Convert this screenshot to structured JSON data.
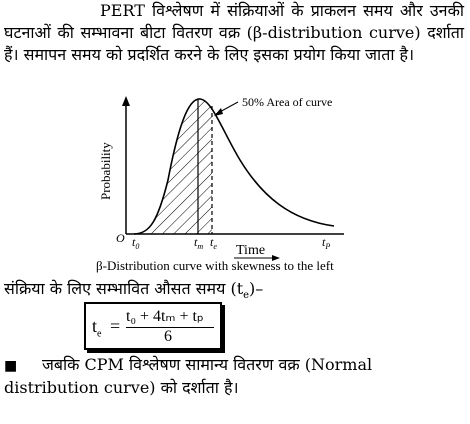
{
  "paragraph1": {
    "text": "PERT विश्लेषण में संक्रियाओं के प्राकलन समय और उनकी घटनाओं की सम्भावना बीटा वितरण वक्र (β-distribution curve) दर्शाता हैं। समापन समय को प्रदर्शित करने के लिए इसका प्रयोग किया जाता है।"
  },
  "figure": {
    "ylabel": "Probability",
    "xlabel": "Time",
    "origin": "O",
    "annotation": "50% Area of curve",
    "ticks": {
      "t0": "t",
      "t0_sub": "0",
      "tm": "t",
      "tm_sub": "m",
      "te": "t",
      "te_sub": "e",
      "tp": "t",
      "tp_sub": "P"
    },
    "caption": "β-Distribution curve with skewness to the left"
  },
  "paragraph2": {
    "text": "संक्रिया के लिए सम्भावित औसत समय (t",
    "sub": "e",
    "tail": ")–"
  },
  "formula": {
    "lhs": "t",
    "lhs_sub": "e",
    "eq": "=",
    "numerator": "t₀ + 4tₘ + tₚ",
    "denominator": "6"
  },
  "paragraph3": {
    "bullet": "■",
    "text": "जबकि CPM विश्लेषण सामान्य वितरण वक्र (Normal distribution curve) को दर्शाता है।"
  }
}
